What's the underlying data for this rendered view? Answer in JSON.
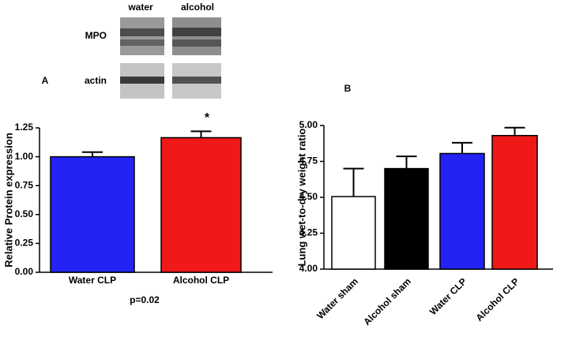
{
  "chart_data": [
    {
      "type": "bar",
      "panel_label": "A",
      "ylabel": "Relative Protein expression",
      "categories": [
        "Water CLP",
        "Alcohol CLP"
      ],
      "series": [
        {
          "values": [
            1.0,
            1.165
          ],
          "errors": [
            0.04,
            0.055
          ],
          "colors": [
            "#2323f5",
            "#f01818"
          ]
        }
      ],
      "ylim": [
        0,
        1.25
      ],
      "yticks": [
        {
          "value": 0,
          "label": "0.00"
        },
        {
          "value": 0.25,
          "label": "0.25"
        },
        {
          "value": 0.5,
          "label": "0.50"
        },
        {
          "value": 0.75,
          "label": "0.75"
        },
        {
          "value": 1,
          "label": "1.00"
        },
        {
          "value": 1.25,
          "label": "1.25"
        }
      ],
      "annotations": [
        "*",
        "p=0.02"
      ],
      "blot": {
        "columns": [
          "water",
          "alcohol"
        ],
        "rows": [
          "MPO",
          "actin"
        ]
      }
    },
    {
      "type": "bar",
      "panel_label": "B",
      "ylabel": "Lung wet-to-dry weight ratio",
      "categories": [
        "Water sham",
        "Alcohol sham",
        "Water CLP",
        "Alcohol CLP"
      ],
      "series": [
        {
          "values": [
            4.505,
            4.7,
            4.805,
            4.93
          ],
          "errors": [
            0.195,
            0.085,
            0.075,
            0.055
          ],
          "colors": [
            "#ffffff",
            "#000000",
            "#2323f5",
            "#f01818"
          ]
        }
      ],
      "ylim": [
        4,
        5
      ],
      "yticks": [
        {
          "value": 4,
          "label": "4.00"
        },
        {
          "value": 4.25,
          "label": "4.25"
        },
        {
          "value": 4.5,
          "label": "4.50"
        },
        {
          "value": 4.75,
          "label": "4.75"
        },
        {
          "value": 5,
          "label": "5.00"
        }
      ]
    }
  ]
}
